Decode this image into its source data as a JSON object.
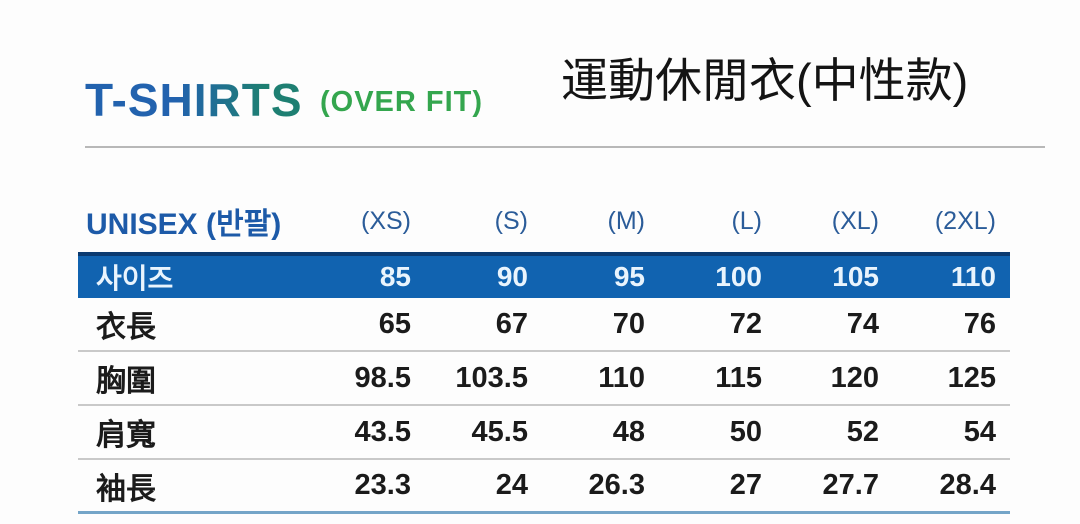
{
  "page": {
    "background": "#ffffff"
  },
  "header": {
    "title": "T-SHIRTS",
    "fit_label": "(OVER FIT)",
    "cjk_title": "運動休閒衣(中性款)",
    "colors": {
      "title_blue": "#2262ae",
      "title_teal": "#1e7f72",
      "fit_green": "#34a64e",
      "cjk_black": "#141414",
      "divider_gray": "#b8b8b8"
    }
  },
  "size_header": {
    "label": "UNISEX (반팔)",
    "sizes": [
      "(XS)",
      "(S)",
      "(M)",
      "(L)",
      "(XL)",
      "(2XL)"
    ]
  },
  "table": {
    "size_row": {
      "label": "사이즈",
      "values": [
        "85",
        "90",
        "95",
        "100",
        "105",
        "110"
      ]
    },
    "rows": [
      {
        "label": "衣長",
        "values": [
          "65",
          "67",
          "70",
          "72",
          "74",
          "76"
        ]
      },
      {
        "label": "胸圍",
        "values": [
          "98.5",
          "103.5",
          "110",
          "115",
          "120",
          "125"
        ]
      },
      {
        "label": "肩寬",
        "values": [
          "43.5",
          "45.5",
          "48",
          "50",
          "52",
          "54"
        ]
      },
      {
        "label": "袖長",
        "values": [
          "23.3",
          "24",
          "26.3",
          "27",
          "27.7",
          "28.4"
        ]
      }
    ],
    "colors": {
      "header_bg": "#1163b0",
      "header_text": "#e9f4fd",
      "header_top_border": "#0b3a70",
      "row_divider": "#c9c9c9",
      "bottom_border": "#74a5c8"
    }
  },
  "chart_data": {
    "type": "table",
    "title": "T-SHIRTS (OVER FIT) 運動休閒衣(中性款) UNISEX (반팔)",
    "columns": [
      "",
      "(XS)",
      "(S)",
      "(M)",
      "(L)",
      "(XL)",
      "(2XL)"
    ],
    "rows": [
      [
        "사이즈",
        85,
        90,
        95,
        100,
        105,
        110
      ],
      [
        "衣長",
        65,
        67,
        70,
        72,
        74,
        76
      ],
      [
        "胸圍",
        98.5,
        103.5,
        110,
        115,
        120,
        125
      ],
      [
        "肩寬",
        43.5,
        45.5,
        48,
        50,
        52,
        54
      ],
      [
        "袖長",
        23.3,
        24,
        26.3,
        27,
        27.7,
        28.4
      ]
    ]
  }
}
